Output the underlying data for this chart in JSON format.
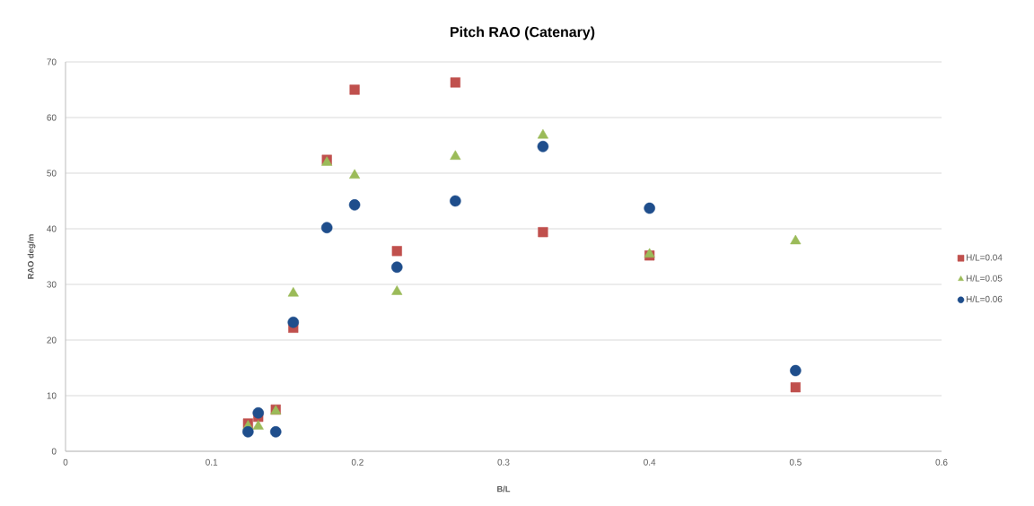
{
  "chart_data": {
    "type": "scatter",
    "title": "Pitch RAO (Catenary)",
    "xlabel": "B/L",
    "ylabel": "RAO deg/m",
    "x": [
      0.125,
      0.132,
      0.144,
      0.156,
      0.179,
      0.198,
      0.227,
      0.267,
      0.327,
      0.4,
      0.5
    ],
    "xlim": [
      0,
      0.6
    ],
    "xticks": [
      0,
      0.1,
      0.2,
      0.3,
      0.4,
      0.5,
      0.6
    ],
    "ylim": [
      0,
      70
    ],
    "yticks": [
      0,
      10,
      20,
      30,
      40,
      50,
      60,
      70
    ],
    "grid": "y",
    "legend": "right",
    "series": [
      {
        "name": "H/L=0.04",
        "color": "#c0504d",
        "marker": "square",
        "values": [
          5.0,
          6.2,
          7.5,
          22.2,
          52.4,
          65.0,
          36.0,
          66.3,
          39.4,
          35.2,
          11.5
        ]
      },
      {
        "name": "H/L=0.05",
        "color": "#9bbb59",
        "marker": "triangle",
        "values": [
          4.5,
          4.5,
          7.2,
          28.4,
          51.9,
          49.6,
          28.7,
          53.0,
          56.8,
          35.4,
          37.8
        ]
      },
      {
        "name": "H/L=0.06",
        "color": "#1f4e8c",
        "marker": "circle",
        "values": [
          3.5,
          6.9,
          3.5,
          23.2,
          40.2,
          44.3,
          33.1,
          45.0,
          54.8,
          43.7,
          14.5
        ]
      }
    ]
  }
}
